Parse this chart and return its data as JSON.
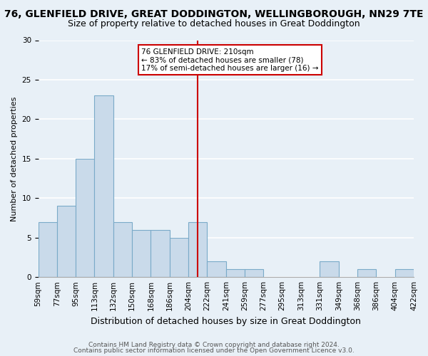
{
  "title": "76, GLENFIELD DRIVE, GREAT DODDINGTON, WELLINGBOROUGH, NN29 7TE",
  "subtitle": "Size of property relative to detached houses in Great Doddington",
  "xlabel": "Distribution of detached houses by size in Great Doddington",
  "ylabel": "Number of detached properties",
  "bin_labels": [
    "59sqm",
    "77sqm",
    "95sqm",
    "113sqm",
    "132sqm",
    "150sqm",
    "168sqm",
    "186sqm",
    "204sqm",
    "222sqm",
    "241sqm",
    "259sqm",
    "277sqm",
    "295sqm",
    "313sqm",
    "331sqm",
    "349sqm",
    "368sqm",
    "386sqm",
    "404sqm",
    "422sqm"
  ],
  "bar_heights": [
    7,
    9,
    15,
    23,
    7,
    6,
    6,
    5,
    7,
    2,
    1,
    1,
    0,
    0,
    0,
    2,
    0,
    1,
    0,
    1
  ],
  "bar_color": "#c9daea",
  "bar_edge_color": "#7aaac8",
  "vline_x": 8.5,
  "vline_color": "#cc0000",
  "annotation_text": "76 GLENFIELD DRIVE: 210sqm\n← 83% of detached houses are smaller (78)\n17% of semi-detached houses are larger (16) →",
  "annotation_box_color": "#ffffff",
  "annotation_box_edge": "#cc0000",
  "ylim": [
    0,
    30
  ],
  "yticks": [
    0,
    5,
    10,
    15,
    20,
    25,
    30
  ],
  "footer1": "Contains HM Land Registry data © Crown copyright and database right 2024.",
  "footer2": "Contains public sector information licensed under the Open Government Licence v3.0.",
  "background_color": "#e8f0f7",
  "grid_color": "#ffffff",
  "title_fontsize": 10,
  "subtitle_fontsize": 9,
  "xlabel_fontsize": 9,
  "ylabel_fontsize": 8,
  "tick_fontsize": 7.5,
  "footer_fontsize": 6.5
}
